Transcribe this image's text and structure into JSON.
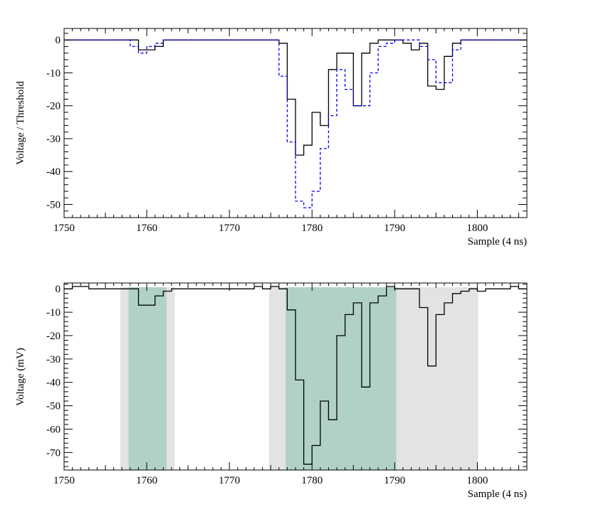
{
  "chart_data": [
    {
      "type": "line",
      "style": "step",
      "xlabel": "Sample (4 ns)",
      "ylabel": "Voltage / Threshold",
      "xlim": [
        1750,
        1806
      ],
      "ylim": [
        -54,
        3.5
      ],
      "xticks": [
        1750,
        1760,
        1770,
        1780,
        1790,
        1800
      ],
      "yticks": [
        0,
        -10,
        -20,
        -30,
        -40,
        -50
      ],
      "x_start": 1750,
      "series": [
        {
          "style": "solid",
          "color": "#000000",
          "values": [
            0,
            0,
            0,
            0,
            0,
            0,
            0,
            0,
            0,
            -3,
            -3,
            -2,
            0,
            0,
            0,
            0,
            0,
            0,
            0,
            0,
            0,
            0,
            0,
            0,
            0,
            0,
            -1,
            -18,
            -35,
            -32,
            -22,
            -26,
            -9,
            -4,
            -4,
            -20,
            -4,
            -1,
            0,
            0,
            0,
            -1,
            -3,
            -1,
            -14,
            -15,
            -5,
            -1,
            0,
            0,
            0,
            0,
            0,
            0,
            0,
            0
          ]
        },
        {
          "style": "dashed",
          "color": "#0000ee",
          "values": [
            0,
            0,
            0,
            0,
            0,
            0,
            0,
            0,
            -2,
            -4,
            -2,
            -1,
            0,
            0,
            0,
            0,
            0,
            0,
            0,
            0,
            0,
            0,
            0,
            0,
            0,
            0,
            -11,
            -31,
            -49,
            -51,
            -46,
            -33,
            -23,
            -9,
            -15,
            -20,
            -20,
            -10,
            -2,
            -1,
            0,
            0,
            0,
            -2,
            -6,
            -13,
            -13,
            -3,
            0,
            0,
            0,
            0,
            0,
            0,
            0,
            0
          ]
        }
      ]
    },
    {
      "type": "line",
      "style": "step",
      "xlabel": "Sample (4 ns)",
      "ylabel": "Voltage (mV)",
      "xlim": [
        1750,
        1806
      ],
      "ylim": [
        -77.5,
        2.5
      ],
      "xticks": [
        1750,
        1760,
        1770,
        1780,
        1790,
        1800
      ],
      "yticks": [
        0,
        -10,
        -20,
        -30,
        -40,
        -50,
        -60,
        -70
      ],
      "x_start": 1750,
      "series": [
        {
          "style": "solid",
          "color": "#000000",
          "values": [
            0,
            1,
            1,
            0,
            0,
            0,
            0,
            0,
            0,
            -7,
            -7,
            -3,
            -1,
            0,
            0,
            0,
            0,
            0,
            0,
            0,
            0,
            0,
            0,
            1,
            0,
            1,
            0,
            -9,
            -39,
            -75,
            -67,
            -48,
            -56,
            -20,
            -11,
            -6,
            -42,
            -6,
            -3,
            1,
            0,
            0,
            0,
            -8,
            -33,
            -11,
            -6,
            -2,
            -1,
            0,
            -1,
            0,
            0,
            0,
            1,
            0
          ]
        }
      ],
      "shaded_regions": [
        {
          "x0": 1756.8,
          "x1": 1763.4,
          "color": "#e3e3e3"
        },
        {
          "x0": 1757.8,
          "x1": 1762.4,
          "color": "#b1d1c7"
        },
        {
          "x0": 1774.8,
          "x1": 1800.1,
          "color": "#e3e3e3"
        },
        {
          "x0": 1776.8,
          "x1": 1790.2,
          "color": "#b1d1c7"
        }
      ]
    }
  ]
}
